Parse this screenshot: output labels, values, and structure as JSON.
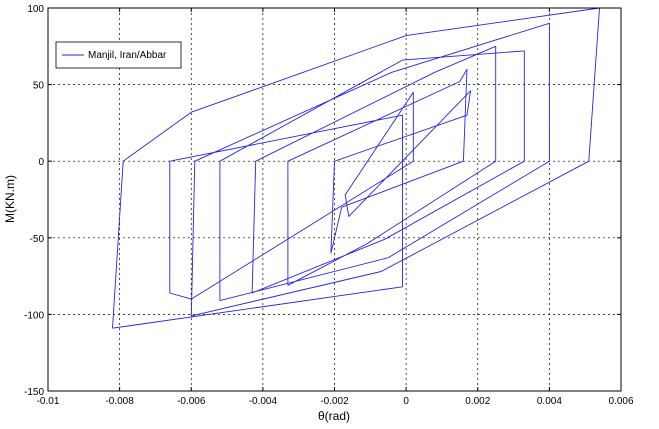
{
  "chart_data": {
    "type": "line",
    "title": "",
    "xlabel": "θ(rad)",
    "ylabel": "M(KN.m)",
    "xlim": [
      -0.01,
      0.006
    ],
    "ylim": [
      -150,
      100
    ],
    "x_ticks": [
      -0.01,
      -0.008,
      -0.006,
      -0.004,
      -0.002,
      0,
      0.002,
      0.004,
      0.006
    ],
    "x_tick_labels": [
      "-0.01",
      "-0.008",
      "-0.006",
      "-0.004",
      "-0.002",
      "0",
      "0.002",
      "0.004",
      "0.006"
    ],
    "y_ticks": [
      -150,
      -100,
      -50,
      0,
      50,
      100
    ],
    "y_tick_labels": [
      "-150",
      "-100",
      "-50",
      "0",
      "50",
      "100"
    ],
    "grid": true,
    "legend_position": "top-left",
    "colors": {
      "series": "#2525e8",
      "grid": "#000000",
      "axes": "#000000"
    },
    "series": [
      {
        "name": "Manjil, Iran/Abbar",
        "x": [
          -0.0082,
          -0.0079,
          -0.006,
          0.0,
          0.0054,
          0.0051,
          -0.0007,
          -0.006,
          -0.0059,
          -0.0004,
          0.004,
          0.004,
          -0.0005,
          -0.0052,
          -0.0052,
          -0.0001,
          0.0033,
          0.0033,
          -0.0006,
          -0.0043,
          -0.0042,
          0.0008,
          0.0025,
          0.0025,
          -0.0011,
          -0.0033,
          -0.0033,
          0.0015,
          0.0017,
          0.0016,
          -0.0018,
          -0.0021,
          -0.002,
          0.0017,
          0.0018,
          -0.0016,
          -0.0017,
          0.0002,
          0.0002,
          -0.006,
          -0.0066,
          -0.0066,
          -0.0001,
          -0.0001,
          -0.0082
        ],
        "y": [
          -109,
          0,
          32,
          82,
          100,
          0,
          -72,
          -101,
          0,
          58,
          90,
          0,
          -63,
          -91,
          0,
          66,
          72,
          0,
          -51,
          -86,
          0,
          58,
          75,
          0,
          -54,
          -81,
          0,
          52,
          60,
          0,
          -30,
          -60,
          0,
          30,
          46,
          -36,
          -22,
          45,
          0,
          -90,
          -86,
          0,
          30,
          -82,
          -109
        ]
      }
    ]
  }
}
